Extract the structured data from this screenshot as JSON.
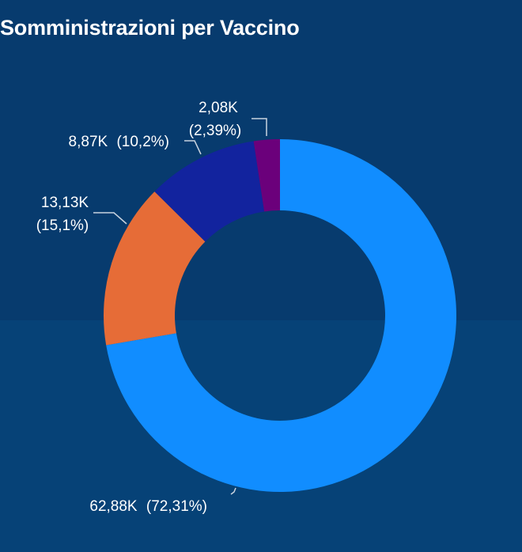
{
  "chart_data": {
    "type": "pie",
    "title": "Somministrazioni per Vaccino",
    "donut": true,
    "slices": [
      {
        "value": 62.88,
        "value_label": "62,88K",
        "percent": 72.31,
        "percent_label": "(72,31%)",
        "color": "#118dff"
      },
      {
        "value": 13.13,
        "value_label": "13,13K",
        "percent": 15.1,
        "percent_label": "(15,1%)",
        "color": "#e66c37"
      },
      {
        "value": 8.87,
        "value_label": "8,87K",
        "percent": 10.2,
        "percent_label": "(10,2%)",
        "color": "#12239e"
      },
      {
        "value": 2.08,
        "value_label": "2,08K",
        "percent": 2.39,
        "percent_label": "(2,39%)",
        "color": "#6b007b"
      }
    ]
  }
}
